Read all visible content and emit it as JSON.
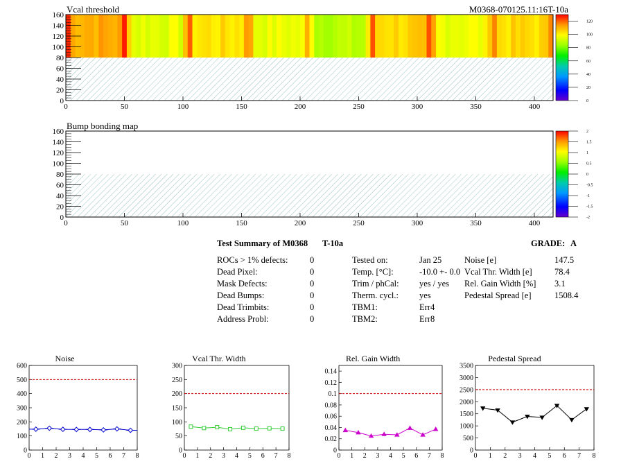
{
  "header": {
    "map1_title": "Vcal threshold",
    "map1_id": "M0368-070125.11:16T-10a",
    "map2_title": "Bump bonding map"
  },
  "maps": {
    "x_ticks": [
      "0",
      "50",
      "100",
      "150",
      "200",
      "250",
      "300",
      "350",
      "400"
    ],
    "y_ticks": [
      "0",
      "20",
      "40",
      "60",
      "80",
      "100",
      "120",
      "140",
      "160"
    ],
    "xlim": [
      0,
      416
    ],
    "ylim": [
      0,
      160
    ],
    "filled_row_range": [
      80,
      160
    ],
    "colorbar1_ticks": [
      "0",
      "20",
      "40",
      "60",
      "80",
      "100",
      "120"
    ],
    "colorbar2_ticks": [
      "-2",
      "-1.5",
      "-1",
      "-0.5",
      "0",
      "0.5",
      "1",
      "1.5",
      "2"
    ]
  },
  "summary": {
    "title": "Test Summary of M0368",
    "test_label": "T-10a",
    "grade_label": "GRADE:",
    "grade_value": "A",
    "defects": [
      {
        "label": "ROCs > 1% defects:",
        "value": "0"
      },
      {
        "label": "Dead Pixel:",
        "value": "0"
      },
      {
        "label": "Mask Defects:",
        "value": "0"
      },
      {
        "label": "Dead Bumps:",
        "value": "0"
      },
      {
        "label": "Dead Trimbits:",
        "value": "0"
      },
      {
        "label": "Address Probl:",
        "value": "0"
      }
    ],
    "conditions": [
      {
        "label": "Tested on:",
        "value": "Jan 25"
      },
      {
        "label": "Temp. [°C]:",
        "value": "-10.0 +- 0.0"
      },
      {
        "label": "Trim / phCal:",
        "value": "yes / yes"
      },
      {
        "label": "Therm. cycl.:",
        "value": "yes"
      },
      {
        "label": "TBM1:",
        "value": "Err4"
      },
      {
        "label": "TBM2:",
        "value": "Err8"
      }
    ],
    "results": [
      {
        "label": "Noise [e]",
        "value": "147.5"
      },
      {
        "label": "Vcal Thr. Width [e]",
        "value": "78.4"
      },
      {
        "label": "Rel. Gain Width [%]",
        "value": "3.1"
      },
      {
        "label": "Pedestal Spread [e]",
        "value": "1508.4"
      }
    ]
  },
  "chart_data": [
    {
      "type": "heatmap",
      "title": "Vcal threshold",
      "xlim": [
        0,
        416
      ],
      "ylim": [
        0,
        160
      ],
      "z_range": [
        0,
        130
      ],
      "description_note": "",
      "roc_columns": [
        {
          "x0": 0,
          "x1": 52,
          "level": 112
        },
        {
          "x0": 52,
          "x1": 104,
          "level": 95
        },
        {
          "x0": 104,
          "x1": 156,
          "level": 103
        },
        {
          "x0": 156,
          "x1": 208,
          "level": 96
        },
        {
          "x0": 208,
          "x1": 260,
          "level": 88
        },
        {
          "x0": 260,
          "x1": 312,
          "level": 105
        },
        {
          "x0": 312,
          "x1": 364,
          "level": 97
        },
        {
          "x0": 364,
          "x1": 416,
          "level": 104
        }
      ]
    },
    {
      "type": "heatmap",
      "title": "Bump bonding map",
      "xlim": [
        0,
        416
      ],
      "ylim": [
        0,
        160
      ],
      "z_range": [
        -2,
        2
      ]
    },
    {
      "type": "line",
      "title": "Noise",
      "x": [
        0.5,
        1.5,
        2.5,
        3.5,
        4.5,
        5.5,
        6.5,
        7.5
      ],
      "values": [
        148,
        155,
        147,
        146,
        146,
        143,
        150,
        140
      ],
      "xlim": [
        0,
        8
      ],
      "ylim": [
        0,
        600
      ],
      "yticks": [
        0,
        100,
        200,
        300,
        400,
        500,
        600
      ],
      "limit": 500,
      "color": "#0000cc",
      "marker": "diamond",
      "limit_color": "#cc0000"
    },
    {
      "type": "line",
      "title": "Vcal Thr. Width",
      "x": [
        0.5,
        1.5,
        2.5,
        3.5,
        4.5,
        5.5,
        6.5,
        7.5
      ],
      "values": [
        83,
        78,
        81,
        74,
        79,
        76,
        77,
        76
      ],
      "xlim": [
        0,
        8
      ],
      "ylim": [
        0,
        300
      ],
      "yticks": [
        0,
        50,
        100,
        150,
        200,
        250,
        300
      ],
      "limit": 200,
      "color": "#33cc33",
      "marker": "square",
      "limit_color": "#cc0000"
    },
    {
      "type": "line",
      "title": "Rel. Gain Width",
      "x": [
        0.5,
        1.5,
        2.5,
        3.5,
        4.5,
        5.5,
        6.5,
        7.5
      ],
      "values": [
        0.035,
        0.031,
        0.025,
        0.028,
        0.027,
        0.039,
        0.027,
        0.037
      ],
      "xlim": [
        0,
        8
      ],
      "ylim": [
        0,
        0.15
      ],
      "yticks": [
        0,
        0.02,
        0.04,
        0.06,
        0.08,
        0.1,
        0.12,
        0.14
      ],
      "limit": 0.1,
      "color": "#cc00cc",
      "marker": "triangle",
      "limit_color": "#cc0000"
    },
    {
      "type": "line",
      "title": "Pedestal Spread",
      "x": [
        0.5,
        1.5,
        2.5,
        3.5,
        4.5,
        5.5,
        6.5,
        7.5
      ],
      "values": [
        1730,
        1650,
        1150,
        1390,
        1350,
        1840,
        1250,
        1700
      ],
      "xlim": [
        0,
        8
      ],
      "ylim": [
        0,
        3500
      ],
      "yticks": [
        0,
        500,
        1000,
        1500,
        2000,
        2500,
        3000,
        3500
      ],
      "limit": 2500,
      "color": "#000000",
      "marker": "triangle-down",
      "limit_color": "#cc0000"
    }
  ]
}
